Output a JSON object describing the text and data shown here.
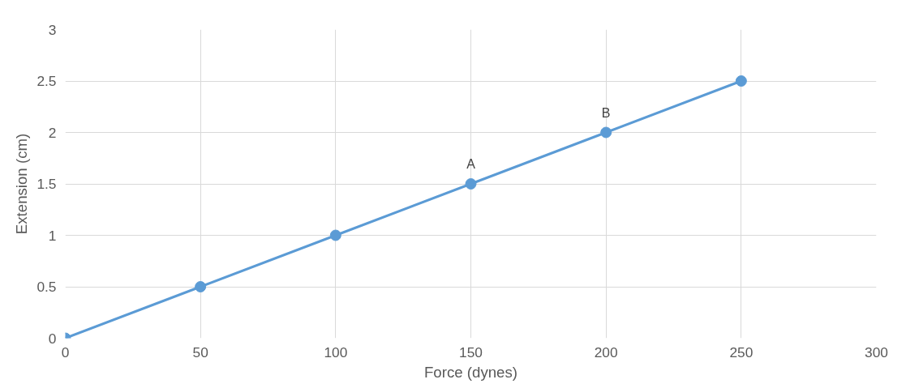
{
  "chart_data": {
    "type": "line",
    "xlabel": "Force (dynes)",
    "ylabel": "Extension (cm)",
    "x": [
      0,
      50,
      100,
      150,
      200,
      250
    ],
    "series": [
      {
        "color": "#5b9bd5",
        "values": [
          0,
          0.5,
          1,
          1.5,
          2,
          2.5
        ]
      }
    ],
    "xlim": [
      0,
      300
    ],
    "ylim": [
      0,
      3
    ],
    "xticks": [
      0,
      50,
      100,
      150,
      200,
      250,
      300
    ],
    "yticks": [
      0,
      0.5,
      1,
      1.5,
      2,
      2.5,
      3
    ],
    "annotations": [
      {
        "text": "A",
        "x": 150,
        "y": 1.5
      },
      {
        "text": "B",
        "x": 200,
        "y": 2
      }
    ],
    "grid": true,
    "marker": "circle"
  }
}
